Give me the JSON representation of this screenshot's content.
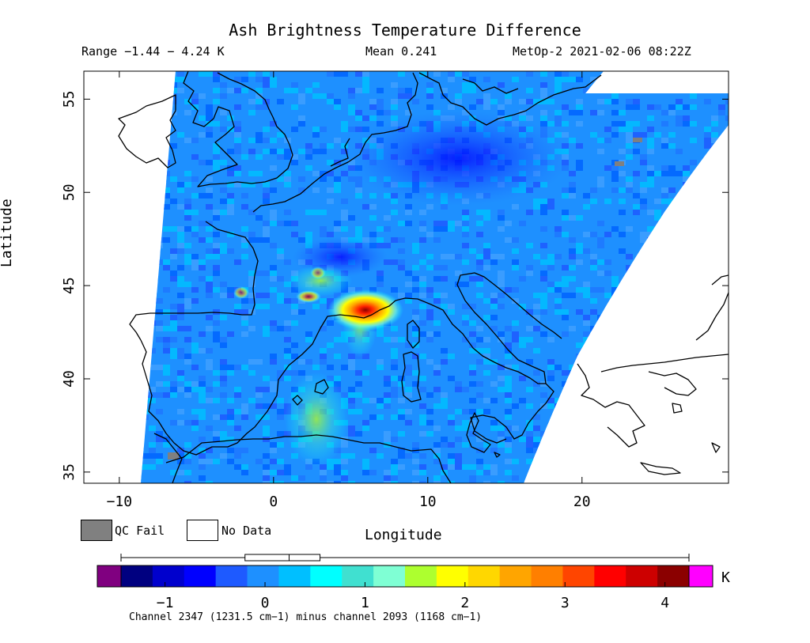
{
  "header": {
    "title": "Ash Brightness Temperature Difference",
    "range": "Range −1.44 − 4.24 K",
    "mean": "Mean 0.241",
    "satellite_time": "MetOp-2 2021-02-06 08:22Z"
  },
  "map": {
    "x_axis": {
      "label": "Longitude",
      "min": -12.3,
      "max": 29.5,
      "ticks": [
        -10,
        0,
        10,
        20
      ],
      "tick_labels": [
        "−10",
        "0",
        "10",
        "20"
      ]
    },
    "y_axis": {
      "label": "Latitude",
      "min": 34.4,
      "max": 56.5,
      "ticks": [
        35,
        40,
        45,
        50,
        55
      ],
      "tick_labels": [
        "35",
        "40",
        "45",
        "50",
        "55"
      ]
    },
    "swath_color": "#1e90ff",
    "hotspot": {
      "center_lon": 5.2,
      "center_lat": 44.0,
      "peak_value_K": 4.24
    },
    "qc_fail_color": "#808080",
    "no_data_color": "#ffffff"
  },
  "legend": {
    "qc_fail_label": "QC Fail",
    "no_data_label": "No Data"
  },
  "colorbar": {
    "unit": "K",
    "min": -1.44,
    "max": 4.24,
    "mean": 0.241,
    "ticks": [
      -1,
      0,
      1,
      2,
      3,
      4
    ],
    "tick_labels": [
      "−1",
      "0",
      "1",
      "2",
      "3",
      "4"
    ],
    "under_color": "#800080",
    "over_color": "#ff00ff",
    "colors": [
      "#000080",
      "#0000cd",
      "#0000ff",
      "#1e5aff",
      "#1e90ff",
      "#00bfff",
      "#00ffff",
      "#40e0d0",
      "#7fffd4",
      "#adff2f",
      "#ffff00",
      "#ffd700",
      "#ffa500",
      "#ff7f00",
      "#ff4500",
      "#ff0000",
      "#cd0000",
      "#8b0000"
    ]
  },
  "footer": {
    "description": "Channel 2347 (1231.5 cm−1) minus channel 2093 (1168 cm−1)"
  }
}
